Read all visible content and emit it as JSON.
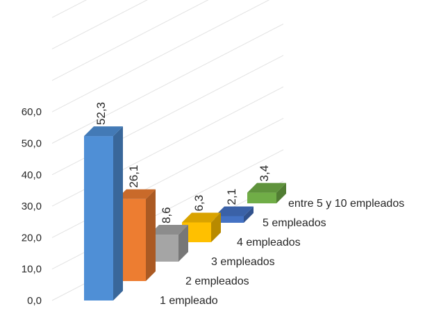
{
  "chart_data": {
    "type": "bar",
    "title": "",
    "xlabel": "",
    "ylabel": "",
    "ylim": [
      0,
      60
    ],
    "yticks": [
      "0,0",
      "10,0",
      "20,0",
      "30,0",
      "40,0",
      "50,0",
      "60,0"
    ],
    "grid": true,
    "legend": "none",
    "categories": [
      "1 empleado",
      "2 empleados",
      "3 empleados",
      "4 empleados",
      "5 empleados",
      "entre 5 y 10 empleados"
    ],
    "values": [
      52.3,
      26.1,
      8.6,
      6.3,
      2.1,
      3.4
    ],
    "data_labels": [
      "52,3",
      "26,1",
      "8,6",
      "6,3",
      "2,1",
      "3,4"
    ],
    "colors": [
      "#4f8fd6",
      "#ed7d31",
      "#a5a5a5",
      "#ffc000",
      "#4472c4",
      "#70ad47"
    ]
  }
}
